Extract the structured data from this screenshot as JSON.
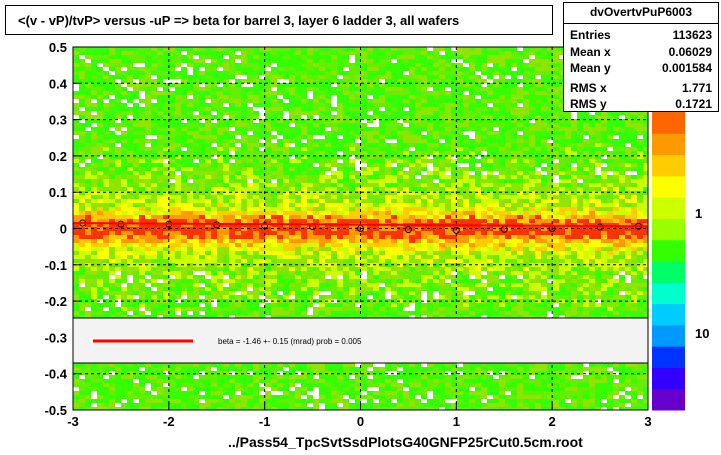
{
  "title": "<(v - vP)/tvP> versus  -uP => beta for barrel 3, layer 6 ladder 3, all wafers",
  "stats": {
    "name": "dvOvertvPuP6003",
    "rows": [
      {
        "key": "Entries",
        "value": "113623"
      },
      {
        "key": "Mean x",
        "value": "0.06029"
      },
      {
        "key": "Mean y",
        "value": "0.001584"
      },
      {
        "key": "RMS x",
        "value": "1.771"
      },
      {
        "key": "RMS y",
        "value": "0.1721"
      }
    ]
  },
  "xlabel": "../Pass54_TpcSvtSsdPlotsG40GNFP25rCut0.5cm.root",
  "legend": {
    "text": "beta =   -1.46 +-  0.15 (mrad) prob = 0.005",
    "line_color": "#ff0000"
  },
  "colorbar": {
    "labels": [
      "1",
      "10"
    ],
    "colors": [
      "#6600cc",
      "#3300ff",
      "#0033ff",
      "#0099ff",
      "#00ccff",
      "#00ffcc",
      "#00ff66",
      "#33ff00",
      "#99ff00",
      "#ccff00",
      "#ffff00",
      "#ffcc00",
      "#ff9900",
      "#ff6600"
    ]
  },
  "chart_data": {
    "type": "heatmap",
    "title": "<(v - vP)/tvP> versus  -uP => beta for barrel 3, layer 6 ladder 3, all wafers",
    "xlabel": "../Pass54_TpcSvtSsdPlotsG40GNFP25rCut0.5cm.root",
    "ylabel": "",
    "xlim": [
      -3,
      3
    ],
    "ylim": [
      -0.5,
      0.5
    ],
    "x_ticks": [
      "-3",
      "-2",
      "-1",
      "0",
      "1",
      "2",
      "3"
    ],
    "y_ticks": [
      "-0.5",
      "-0.4",
      "-0.3",
      "-0.2",
      "-0.1",
      "0",
      "0.1",
      "0.2",
      "0.3",
      "0.4",
      "0.5"
    ],
    "grid": true,
    "profile": {
      "x": [
        -2.9,
        -2.5,
        -2.0,
        -1.5,
        -1.0,
        -0.5,
        0.0,
        0.5,
        1.0,
        1.5,
        2.0,
        2.5,
        2.9
      ],
      "y": [
        0.015,
        0.012,
        0.012,
        0.01,
        0.008,
        0.005,
        0.0,
        -0.003,
        -0.005,
        -0.002,
        0.0,
        0.004,
        0.006
      ]
    },
    "fit": {
      "beta_mrad": -1.46,
      "error_mrad": 0.15,
      "prob": 0.005
    }
  }
}
